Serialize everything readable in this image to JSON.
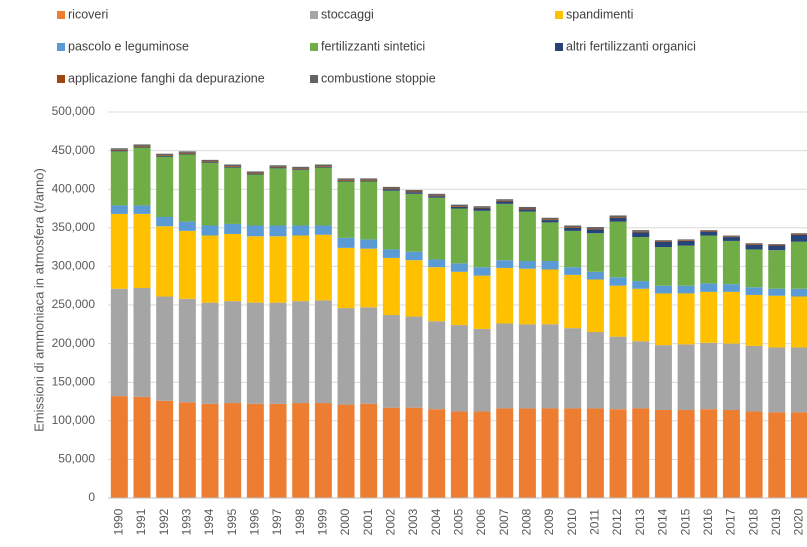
{
  "chart_data": {
    "type": "stacked_bar",
    "y_label": "Emissioni di ammoniaca in atmosfera (t/anno)",
    "categories": [
      "1990",
      "1991",
      "1992",
      "1993",
      "1994",
      "1995",
      "1996",
      "1997",
      "1998",
      "1999",
      "2000",
      "2001",
      "2002",
      "2003",
      "2004",
      "2005",
      "2006",
      "2007",
      "2008",
      "2009",
      "2010",
      "2011",
      "2012",
      "2013",
      "2014",
      "2015",
      "2016",
      "2017",
      "2018",
      "2019",
      "2020"
    ],
    "ylim": [
      0,
      500000
    ],
    "yticks": [
      0,
      {
        "value": 50000,
        "label": "50,000"
      },
      {
        "value": 100000,
        "label": "100,000"
      },
      {
        "value": 150000,
        "label": "150,000"
      },
      {
        "value": 200000,
        "label": "200,000"
      },
      {
        "value": 250000,
        "label": "250,000"
      },
      {
        "value": 300000,
        "label": "300,000"
      },
      {
        "value": 350000,
        "label": "350,000"
      },
      {
        "value": 400000,
        "label": "400,000"
      },
      {
        "value": 450000,
        "label": "450,000"
      },
      {
        "value": 500000,
        "label": "500,000"
      }
    ],
    "grid": true,
    "series": [
      {
        "name": "ricoveri",
        "color": "#ed7d31",
        "values": [
          132000,
          131000,
          126000,
          124000,
          122000,
          123000,
          122000,
          122000,
          123000,
          123000,
          121000,
          122000,
          117000,
          117000,
          115000,
          112000,
          112000,
          116000,
          116000,
          116000,
          116000,
          116000,
          115000,
          116000,
          114000,
          114000,
          115000,
          114000,
          112000,
          111000,
          111000
        ]
      },
      {
        "name": "stoccaggi",
        "color": "#a5a5a5",
        "values": [
          139000,
          141000,
          135000,
          134000,
          131000,
          132000,
          131000,
          131000,
          132000,
          133000,
          125000,
          125000,
          120000,
          118000,
          114000,
          112000,
          107000,
          110000,
          109000,
          109000,
          104000,
          99000,
          94000,
          87000,
          84000,
          85000,
          86000,
          86000,
          85000,
          84000,
          84000
        ]
      },
      {
        "name": "spandimenti",
        "color": "#ffc000",
        "values": [
          97000,
          96000,
          91000,
          88000,
          87000,
          87000,
          86000,
          86000,
          85000,
          85000,
          78000,
          76000,
          74000,
          73000,
          70000,
          69000,
          69000,
          72000,
          72000,
          71000,
          69000,
          68000,
          66000,
          68000,
          67000,
          66000,
          66000,
          67000,
          66000,
          67000,
          66000
        ]
      },
      {
        "name": "pascolo e leguminose",
        "color": "#5b9bd5",
        "values": [
          11000,
          11000,
          12000,
          12000,
          13000,
          13000,
          14000,
          14000,
          13000,
          12000,
          13000,
          12000,
          11000,
          11000,
          10000,
          11000,
          11000,
          10000,
          10000,
          11000,
          10000,
          10000,
          11000,
          10000,
          10000,
          10000,
          11000,
          10000,
          10000,
          9000,
          10000
        ]
      },
      {
        "name": "fertilizzanti sintetici",
        "color": "#70ad47",
        "values": [
          70000,
          75000,
          78000,
          87000,
          81000,
          73000,
          66000,
          74000,
          72000,
          75000,
          73000,
          75000,
          76000,
          75000,
          80000,
          71000,
          73000,
          73000,
          64000,
          50000,
          47000,
          50000,
          72000,
          57000,
          50000,
          52000,
          62000,
          56000,
          49000,
          50000,
          61000
        ]
      },
      {
        "name": "altri fertilizzanti organici",
        "color": "#264478",
        "values": [
          1000,
          1000,
          1000,
          1000,
          1000,
          1000,
          1000,
          1000,
          1000,
          1000,
          1000,
          1000,
          2000,
          2000,
          2000,
          2000,
          3000,
          3000,
          3000,
          3000,
          4000,
          5000,
          5000,
          6000,
          7000,
          6000,
          5000,
          5000,
          6000,
          6000,
          9000
        ]
      },
      {
        "name": "applicazione fanghi da depurazione",
        "color": "#9e480e",
        "values": [
          1000,
          1000,
          1000,
          1000,
          1000,
          1000,
          1000,
          1000,
          1000,
          1000,
          1000,
          1000,
          1000,
          1000,
          1000,
          1000,
          1000,
          1000,
          1000,
          1000,
          1000,
          1000,
          1000,
          1000,
          1000,
          1000,
          1000,
          1000,
          1000,
          1000,
          1000
        ]
      },
      {
        "name": "combustione stoppie",
        "color": "#636363",
        "values": [
          2000,
          2000,
          2000,
          2000,
          2000,
          2000,
          2000,
          2000,
          2000,
          2000,
          2000,
          2000,
          2000,
          2000,
          2000,
          2000,
          2000,
          2000,
          2000,
          2000,
          2000,
          2000,
          2000,
          2000,
          1000,
          1000,
          1000,
          1000,
          1000,
          1000,
          1000
        ]
      }
    ]
  }
}
